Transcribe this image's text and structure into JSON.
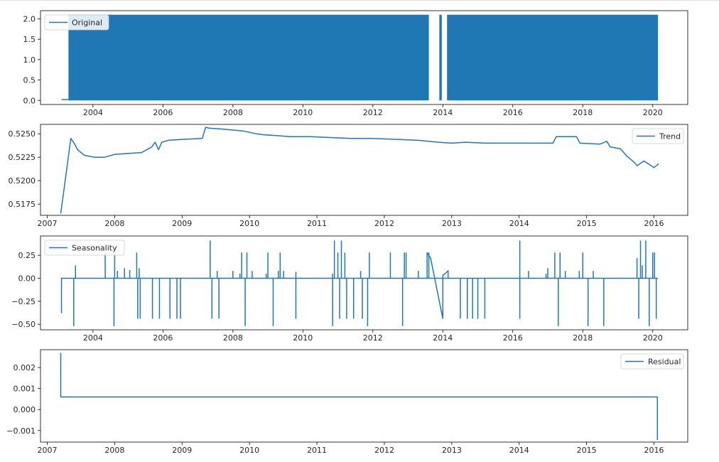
{
  "chart_data": [
    {
      "type": "area",
      "xlim": [
        2002.5,
        2021.0
      ],
      "ylim": [
        -0.1,
        2.2
      ],
      "xticks": [
        2004,
        2006,
        2008,
        2010,
        2012,
        2014,
        2016,
        2018,
        2020
      ],
      "xticklabels": [
        "2004",
        "2006",
        "2008",
        "2010",
        "2012",
        "2014",
        "2016",
        "2018",
        "2020"
      ],
      "yticks": [
        0.0,
        0.5,
        1.0,
        1.5,
        2.0
      ],
      "yticklabels": [
        "0.0",
        "0.5",
        "1.0",
        "1.5",
        "2.0"
      ],
      "legend_position": "top-left",
      "series": [
        {
          "name": "Original",
          "color": "#1f77b4",
          "baseline": [
            [
              2003.1,
              2003.3,
              0.02
            ]
          ],
          "filled_ranges": [
            [
              2003.3,
              2013.6,
              0.0,
              2.1
            ],
            [
              2013.9,
              2013.97,
              0.0,
              2.1
            ],
            [
              2014.12,
              2020.15,
              0.0,
              2.1
            ]
          ]
        }
      ]
    },
    {
      "type": "line",
      "xlim": [
        2006.9,
        2016.5
      ],
      "ylim": [
        0.5163,
        0.526
      ],
      "xticks": [
        2007,
        2008,
        2009,
        2010,
        2011,
        2012,
        2013,
        2014,
        2015,
        2016
      ],
      "xticklabels": [
        "2007",
        "2008",
        "2009",
        "2010",
        "2011",
        "2012",
        "2013",
        "2014",
        "2015",
        "2016"
      ],
      "yticks": [
        0.5175,
        0.52,
        0.5225,
        0.525
      ],
      "yticklabels": [
        "0.5175",
        "0.5200",
        "0.5225",
        "0.5250"
      ],
      "legend_position": "top-right",
      "series": [
        {
          "name": "Trend",
          "color": "#1f77b4",
          "x": [
            2007.2,
            2007.35,
            2007.4,
            2007.45,
            2007.5,
            2007.55,
            2007.7,
            2007.85,
            2008.0,
            2008.2,
            2008.4,
            2008.55,
            2008.6,
            2008.65,
            2008.7,
            2008.8,
            2009.0,
            2009.3,
            2009.35,
            2009.4,
            2009.6,
            2009.9,
            2010.1,
            2010.2,
            2010.4,
            2010.6,
            2010.9,
            2011.2,
            2011.5,
            2011.8,
            2012.2,
            2012.5,
            2012.8,
            2013.0,
            2013.2,
            2013.5,
            2013.8,
            2014.2,
            2014.5,
            2014.55,
            2014.85,
            2014.9,
            2015.2,
            2015.3,
            2015.35,
            2015.5,
            2015.6,
            2015.7,
            2015.75,
            2015.85,
            2016.0,
            2016.07
          ],
          "y": [
            0.5165,
            0.5245,
            0.524,
            0.5233,
            0.523,
            0.5227,
            0.5225,
            0.5225,
            0.5228,
            0.5229,
            0.523,
            0.5236,
            0.5241,
            0.5233,
            0.5241,
            0.5243,
            0.5244,
            0.5245,
            0.5257,
            0.5256,
            0.5255,
            0.5253,
            0.525,
            0.5249,
            0.5248,
            0.5247,
            0.5247,
            0.5246,
            0.5245,
            0.5245,
            0.5244,
            0.5243,
            0.5241,
            0.524,
            0.5241,
            0.524,
            0.524,
            0.524,
            0.524,
            0.5247,
            0.5247,
            0.524,
            0.5239,
            0.5242,
            0.5236,
            0.5234,
            0.5226,
            0.522,
            0.5216,
            0.5221,
            0.5214,
            0.5218
          ]
        }
      ]
    },
    {
      "type": "line",
      "xlim": [
        2002.5,
        2021.0
      ],
      "ylim": [
        -0.56,
        0.46
      ],
      "xticks": [
        2004,
        2006,
        2008,
        2010,
        2012,
        2014,
        2016,
        2018,
        2020
      ],
      "xticklabels": [
        "2004",
        "2006",
        "2008",
        "2010",
        "2012",
        "2014",
        "2016",
        "2018",
        "2020"
      ],
      "yticks": [
        -0.5,
        -0.25,
        0.0,
        0.25
      ],
      "yticklabels": [
        "−0.50",
        "−0.25",
        "0.00",
        "0.25"
      ],
      "legend_position": "top-left",
      "series": [
        {
          "name": "Seasonality",
          "color": "#1f77b4",
          "baseline": 0.0,
          "range": [
            2003.08,
            2020.15
          ],
          "spikes": [
            [
              2003.1,
              -0.38
            ],
            [
              2003.45,
              -0.52
            ],
            [
              2003.5,
              0.14
            ],
            [
              2004.35,
              0.28
            ],
            [
              2004.6,
              -0.52
            ],
            [
              2004.62,
              0.28
            ],
            [
              2004.7,
              0.08
            ],
            [
              2004.9,
              0.11
            ],
            [
              2005.05,
              0.09
            ],
            [
              2005.25,
              0.28
            ],
            [
              2005.28,
              -0.44
            ],
            [
              2005.32,
              0.11
            ],
            [
              2005.35,
              -0.44
            ],
            [
              2005.7,
              -0.44
            ],
            [
              2005.9,
              -0.44
            ],
            [
              2006.2,
              -0.44
            ],
            [
              2006.4,
              -0.44
            ],
            [
              2006.5,
              -0.44
            ],
            [
              2007.35,
              0.41
            ],
            [
              2007.4,
              -0.44
            ],
            [
              2007.55,
              0.08
            ],
            [
              2007.6,
              -0.44
            ],
            [
              2008.0,
              0.08
            ],
            [
              2008.2,
              0.05
            ],
            [
              2008.25,
              0.28
            ],
            [
              2008.35,
              -0.52
            ],
            [
              2008.4,
              0.28
            ],
            [
              2008.55,
              0.08
            ],
            [
              2008.95,
              0.05
            ],
            [
              2009.0,
              0.28
            ],
            [
              2009.15,
              -0.52
            ],
            [
              2009.3,
              0.08
            ],
            [
              2009.35,
              0.28
            ],
            [
              2009.45,
              0.08
            ],
            [
              2009.8,
              -0.44
            ],
            [
              2009.8,
              0.07
            ],
            [
              2010.85,
              -0.52
            ],
            [
              2010.85,
              0.05
            ],
            [
              2010.9,
              0.41
            ],
            [
              2011.0,
              0.28
            ],
            [
              2011.05,
              -0.44
            ],
            [
              2011.1,
              0.41
            ],
            [
              2011.2,
              0.28
            ],
            [
              2011.25,
              -0.44
            ],
            [
              2011.45,
              -0.44
            ],
            [
              2011.65,
              0.08
            ],
            [
              2011.7,
              -0.44
            ],
            [
              2011.85,
              -0.52
            ],
            [
              2011.9,
              0.28
            ],
            [
              2012.5,
              0.28
            ],
            [
              2012.85,
              -0.52
            ],
            [
              2012.9,
              0.28
            ],
            [
              2012.95,
              0.28
            ],
            [
              2013.3,
              0.08
            ],
            [
              2013.55,
              0.28
            ],
            [
              2013.6,
              0.28
            ],
            [
              2014.5,
              -0.44
            ],
            [
              2014.7,
              -0.44
            ],
            [
              2014.85,
              -0.44
            ],
            [
              2015.0,
              -0.44
            ],
            [
              2015.2,
              -0.44
            ],
            [
              2016.2,
              0.41
            ],
            [
              2016.2,
              -0.44
            ],
            [
              2016.45,
              0.08
            ],
            [
              2016.95,
              0.05
            ],
            [
              2017.0,
              0.11
            ],
            [
              2017.2,
              0.28
            ],
            [
              2017.3,
              -0.52
            ],
            [
              2017.35,
              0.28
            ],
            [
              2017.5,
              0.08
            ],
            [
              2017.9,
              0.08
            ],
            [
              2018.0,
              0.28
            ],
            [
              2018.15,
              -0.52
            ],
            [
              2018.3,
              0.08
            ],
            [
              2018.6,
              -0.52
            ],
            [
              2019.55,
              0.22
            ],
            [
              2019.6,
              -0.44
            ],
            [
              2019.65,
              0.41
            ],
            [
              2019.7,
              0.14
            ],
            [
              2019.8,
              0.41
            ],
            [
              2019.9,
              -0.52
            ],
            [
              2020.0,
              0.28
            ],
            [
              2020.05,
              0.28
            ],
            [
              2020.1,
              -0.44
            ]
          ],
          "path": [
            [
              2013.55,
              0.28
            ],
            [
              2013.65,
              0.22
            ],
            [
              2014.0,
              -0.44
            ],
            [
              2014.0,
              0.03
            ],
            [
              2014.15,
              0.08
            ],
            [
              2014.15,
              0.0
            ]
          ]
        }
      ]
    },
    {
      "type": "line",
      "xlim": [
        2006.9,
        2016.5
      ],
      "ylim": [
        -0.00155,
        0.00285
      ],
      "xticks": [
        2007,
        2008,
        2009,
        2010,
        2011,
        2012,
        2013,
        2014,
        2015,
        2016
      ],
      "xticklabels": [
        "2007",
        "2008",
        "2009",
        "2010",
        "2011",
        "2012",
        "2013",
        "2014",
        "2015",
        "2016"
      ],
      "yticks": [
        -0.001,
        0.0,
        0.001,
        0.002
      ],
      "yticklabels": [
        "−0.001",
        "0.000",
        "0.001",
        "0.002"
      ],
      "legend_position": "top-right",
      "series": [
        {
          "name": "Residual",
          "color": "#1f77b4",
          "x": [
            2007.2,
            2007.2,
            2016.05,
            2016.05
          ],
          "y": [
            0.0027,
            0.0006,
            0.0006,
            -0.00145
          ]
        }
      ]
    }
  ]
}
